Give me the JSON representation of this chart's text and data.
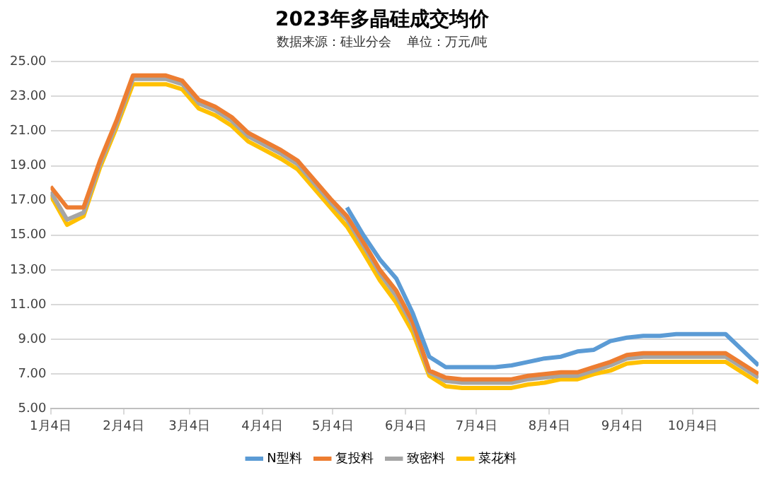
{
  "chart_data": {
    "type": "line",
    "title": "2023年多晶硅成交均价",
    "subtitle": "数据来源：硅业分会    单位：万元/吨",
    "x": [
      "2023-01-04",
      "2023-01-11",
      "2023-01-18",
      "2023-01-25",
      "2023-02-01",
      "2023-02-08",
      "2023-02-15",
      "2023-02-22",
      "2023-03-01",
      "2023-03-08",
      "2023-03-15",
      "2023-03-22",
      "2023-03-29",
      "2023-04-05",
      "2023-04-12",
      "2023-04-19",
      "2023-04-26",
      "2023-05-03",
      "2023-05-10",
      "2023-05-17",
      "2023-05-24",
      "2023-05-31",
      "2023-06-07",
      "2023-06-14",
      "2023-06-21",
      "2023-06-28",
      "2023-07-05",
      "2023-07-12",
      "2023-07-19",
      "2023-07-26",
      "2023-08-02",
      "2023-08-09",
      "2023-08-16",
      "2023-08-23",
      "2023-08-30",
      "2023-09-06",
      "2023-09-13",
      "2023-09-20",
      "2023-09-27",
      "2023-10-04",
      "2023-10-11",
      "2023-10-18",
      "2023-10-25",
      "2023-11-01"
    ],
    "series": [
      {
        "name": "N型料",
        "color": "#5b9bd5",
        "values": [
          null,
          null,
          null,
          null,
          null,
          null,
          null,
          null,
          null,
          null,
          null,
          null,
          null,
          null,
          null,
          null,
          null,
          null,
          16.6,
          15.0,
          13.6,
          12.5,
          10.5,
          8.0,
          7.4,
          7.4,
          7.4,
          7.4,
          7.5,
          7.7,
          7.9,
          8.0,
          8.3,
          8.4,
          8.9,
          9.1,
          9.2,
          9.2,
          9.3,
          9.3,
          9.3,
          9.3,
          8.4,
          7.5
        ]
      },
      {
        "name": "复投料",
        "color": "#ed7d31",
        "values": [
          17.8,
          16.6,
          16.6,
          19.3,
          21.6,
          24.2,
          24.2,
          24.2,
          23.9,
          22.8,
          22.4,
          21.8,
          20.9,
          20.4,
          19.9,
          19.3,
          18.2,
          17.1,
          16.1,
          14.6,
          13.0,
          11.8,
          10.0,
          7.2,
          6.8,
          6.7,
          6.7,
          6.7,
          6.7,
          6.9,
          7.0,
          7.1,
          7.1,
          7.4,
          7.7,
          8.1,
          8.2,
          8.2,
          8.2,
          8.2,
          8.2,
          8.2,
          7.6,
          7.0
        ]
      },
      {
        "name": "致密料",
        "color": "#a5a5a5",
        "values": [
          17.5,
          15.9,
          16.3,
          19.1,
          21.4,
          24.0,
          24.0,
          24.0,
          23.7,
          22.6,
          22.2,
          21.6,
          20.7,
          20.2,
          19.7,
          19.1,
          18.0,
          16.9,
          15.9,
          14.4,
          12.8,
          11.5,
          9.8,
          7.1,
          6.6,
          6.5,
          6.5,
          6.5,
          6.5,
          6.7,
          6.8,
          6.9,
          6.9,
          7.2,
          7.5,
          7.9,
          8.0,
          8.0,
          8.0,
          8.0,
          8.0,
          8.0,
          7.4,
          6.8
        ]
      },
      {
        "name": "菜花料",
        "color": "#ffc000",
        "values": [
          17.3,
          15.6,
          16.1,
          18.9,
          21.2,
          23.7,
          23.7,
          23.7,
          23.4,
          22.3,
          21.9,
          21.3,
          20.4,
          19.9,
          19.4,
          18.8,
          17.7,
          16.6,
          15.5,
          14.0,
          12.4,
          11.1,
          9.4,
          6.9,
          6.3,
          6.2,
          6.2,
          6.2,
          6.2,
          6.4,
          6.5,
          6.7,
          6.7,
          7.0,
          7.2,
          7.6,
          7.7,
          7.7,
          7.7,
          7.7,
          7.7,
          7.7,
          7.1,
          6.5
        ]
      }
    ],
    "xlim": [
      "2023-01-04",
      "2023-11-01"
    ],
    "xticks": [
      {
        "value": "2023-01-04",
        "label": "1月4日"
      },
      {
        "value": "2023-02-04",
        "label": "2月4日"
      },
      {
        "value": "2023-03-04",
        "label": "3月4日"
      },
      {
        "value": "2023-04-04",
        "label": "4月4日"
      },
      {
        "value": "2023-05-04",
        "label": "5月4日"
      },
      {
        "value": "2023-06-04",
        "label": "6月4日"
      },
      {
        "value": "2023-07-04",
        "label": "7月4日"
      },
      {
        "value": "2023-08-04",
        "label": "8月4日"
      },
      {
        "value": "2023-09-04",
        "label": "9月4日"
      },
      {
        "value": "2023-10-04",
        "label": "10月4日"
      }
    ],
    "ylim": [
      5,
      25
    ],
    "yticks": [
      {
        "value": 5,
        "label": "5.00"
      },
      {
        "value": 7,
        "label": "7.00"
      },
      {
        "value": 9,
        "label": "9.00"
      },
      {
        "value": 11,
        "label": "11.00"
      },
      {
        "value": 13,
        "label": "13.00"
      },
      {
        "value": 15,
        "label": "15.00"
      },
      {
        "value": 17,
        "label": "17.00"
      },
      {
        "value": 19,
        "label": "19.00"
      },
      {
        "value": 21,
        "label": "21.00"
      },
      {
        "value": 23,
        "label": "23.00"
      },
      {
        "value": 25,
        "label": "25.00"
      }
    ],
    "grid": "y",
    "legend": "bottom",
    "marker": "none",
    "line_style": "solid"
  }
}
